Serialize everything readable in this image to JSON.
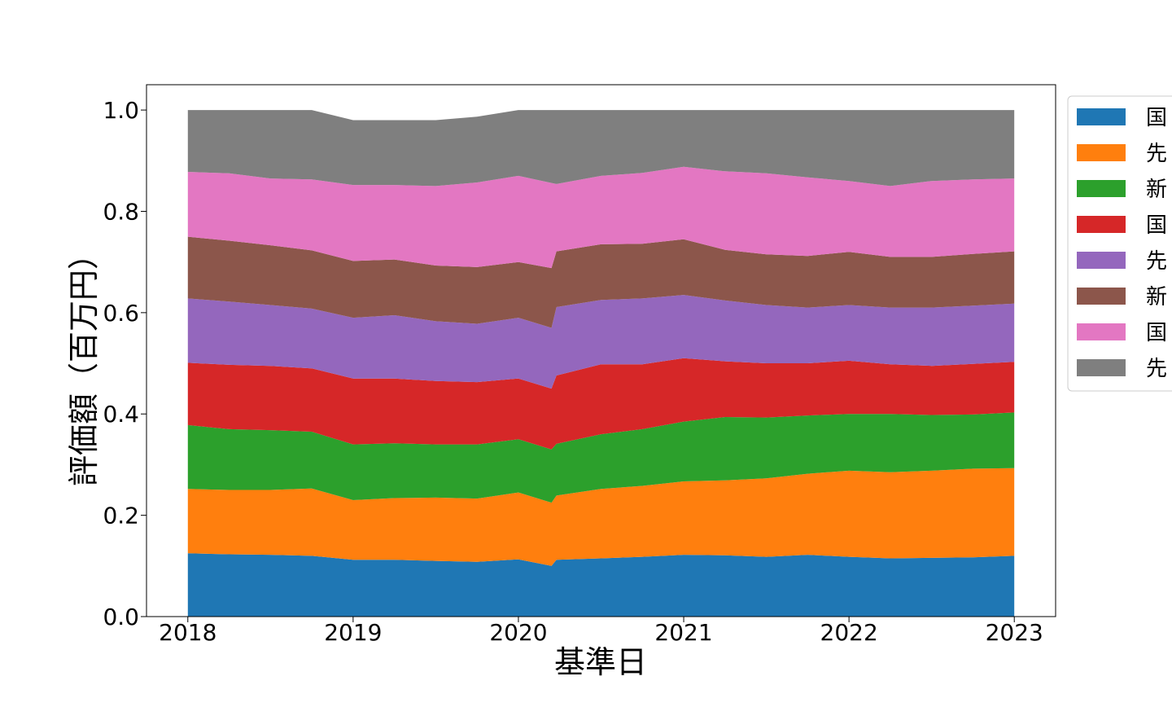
{
  "chart_data": {
    "type": "area",
    "stacked": true,
    "xlabel": "基準日",
    "ylabel": "評価額（百万円）",
    "xlim": [
      2017.75,
      2023.25
    ],
    "ylim": [
      0.0,
      1.05
    ],
    "x_ticks": [
      {
        "value": 2018,
        "label": "2018"
      },
      {
        "value": 2019,
        "label": "2019"
      },
      {
        "value": 2020,
        "label": "2020"
      },
      {
        "value": 2021,
        "label": "2021"
      },
      {
        "value": 2022,
        "label": "2022"
      },
      {
        "value": 2023,
        "label": "2023"
      }
    ],
    "y_ticks": [
      {
        "value": 0.0,
        "label": "0.0"
      },
      {
        "value": 0.2,
        "label": "0.2"
      },
      {
        "value": 0.4,
        "label": "0.4"
      },
      {
        "value": 0.6,
        "label": "0.6"
      },
      {
        "value": 0.8,
        "label": "0.8"
      },
      {
        "value": 1.0,
        "label": "1.0"
      }
    ],
    "grid": false,
    "legend_position": "outside-right (cropped)",
    "x": [
      2018.0,
      2018.25,
      2018.5,
      2018.75,
      2019.0,
      2019.25,
      2019.5,
      2019.75,
      2020.0,
      2020.2,
      2020.23,
      2020.5,
      2020.75,
      2021.0,
      2021.25,
      2021.5,
      2021.75,
      2022.0,
      2022.25,
      2022.5,
      2022.75,
      2023.0
    ],
    "series": [
      {
        "name": "国",
        "color": "#1f77b4",
        "values": [
          0.125,
          0.123,
          0.122,
          0.12,
          0.112,
          0.112,
          0.11,
          0.108,
          0.113,
          0.1,
          0.112,
          0.115,
          0.118,
          0.122,
          0.121,
          0.118,
          0.122,
          0.118,
          0.115,
          0.116,
          0.117,
          0.12
        ]
      },
      {
        "name": "先",
        "color": "#ff7f0e",
        "values": [
          0.127,
          0.127,
          0.128,
          0.133,
          0.118,
          0.122,
          0.125,
          0.125,
          0.132,
          0.125,
          0.127,
          0.137,
          0.14,
          0.145,
          0.148,
          0.155,
          0.16,
          0.17,
          0.17,
          0.172,
          0.175,
          0.173
        ]
      },
      {
        "name": "新",
        "color": "#2ca02c",
        "values": [
          0.126,
          0.12,
          0.118,
          0.112,
          0.11,
          0.108,
          0.105,
          0.107,
          0.105,
          0.105,
          0.102,
          0.108,
          0.112,
          0.118,
          0.125,
          0.12,
          0.115,
          0.112,
          0.115,
          0.11,
          0.107,
          0.11
        ]
      },
      {
        "name": "国",
        "color": "#d62728",
        "values": [
          0.123,
          0.127,
          0.127,
          0.125,
          0.13,
          0.128,
          0.125,
          0.123,
          0.12,
          0.12,
          0.135,
          0.138,
          0.128,
          0.125,
          0.11,
          0.107,
          0.103,
          0.105,
          0.098,
          0.097,
          0.1,
          0.1
        ]
      },
      {
        "name": "先",
        "color": "#9467bd",
        "values": [
          0.127,
          0.125,
          0.12,
          0.118,
          0.12,
          0.125,
          0.118,
          0.115,
          0.12,
          0.12,
          0.135,
          0.127,
          0.13,
          0.125,
          0.12,
          0.115,
          0.11,
          0.11,
          0.112,
          0.115,
          0.115,
          0.115
        ]
      },
      {
        "name": "新",
        "color": "#8c564b",
        "values": [
          0.122,
          0.12,
          0.118,
          0.115,
          0.112,
          0.11,
          0.11,
          0.112,
          0.11,
          0.118,
          0.11,
          0.11,
          0.108,
          0.11,
          0.1,
          0.1,
          0.102,
          0.105,
          0.1,
          0.1,
          0.102,
          0.103
        ]
      },
      {
        "name": "国",
        "color": "#e377c2",
        "values": [
          0.128,
          0.133,
          0.132,
          0.14,
          0.15,
          0.147,
          0.157,
          0.167,
          0.17,
          0.168,
          0.133,
          0.135,
          0.14,
          0.143,
          0.155,
          0.16,
          0.155,
          0.14,
          0.14,
          0.15,
          0.147,
          0.144
        ]
      },
      {
        "name": "先",
        "color": "#7f7f7f",
        "values": [
          0.122,
          0.125,
          0.135,
          0.137,
          0.128,
          0.128,
          0.13,
          0.13,
          0.13,
          0.144,
          0.146,
          0.13,
          0.124,
          0.112,
          0.121,
          0.125,
          0.133,
          0.14,
          0.15,
          0.14,
          0.137,
          0.135
        ]
      }
    ]
  }
}
